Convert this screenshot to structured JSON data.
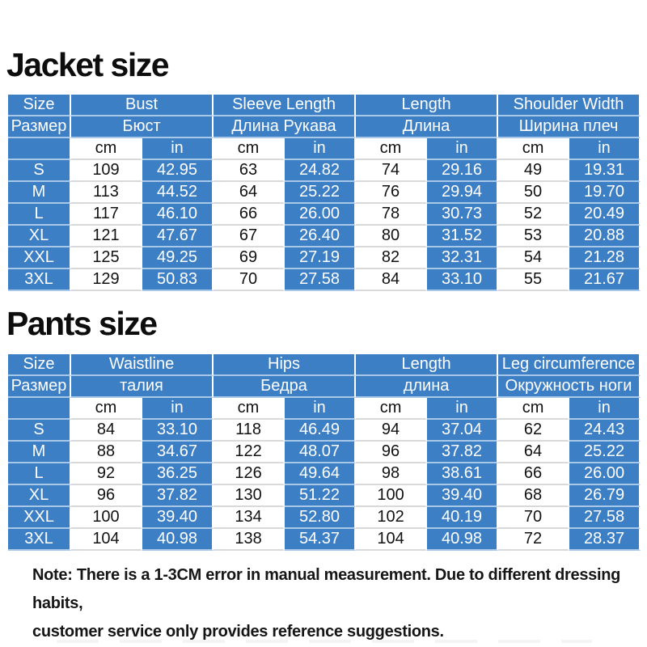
{
  "titles": {
    "jacket": "Jacket size",
    "pants": "Pants size"
  },
  "note": {
    "line1": "Note: There is a 1-3CM error in manual measurement. Due to different dressing habits,",
    "line2": "customer service only provides reference suggestions."
  },
  "colors": {
    "table_blue": "#3d7fc4",
    "header_text": "#ffffff",
    "value_text": "#121212",
    "title_text": "#0d0d0d"
  },
  "tables": [
    {
      "name": "jacket",
      "size_header": {
        "en": "Size",
        "ru": "Размер"
      },
      "groups": [
        {
          "en": "Bust",
          "ru": "Бюст"
        },
        {
          "en": "Sleeve Length",
          "ru": "Длина Рукава"
        },
        {
          "en": "Length",
          "ru": "Длина"
        },
        {
          "en": "Shoulder Width",
          "ru": "Ширина плеч"
        }
      ],
      "units": {
        "cm": "cm",
        "in": "in"
      },
      "rows": [
        {
          "size": "S",
          "values": [
            "109",
            "42.95",
            "63",
            "24.82",
            "74",
            "29.16",
            "49",
            "19.31"
          ]
        },
        {
          "size": "M",
          "values": [
            "113",
            "44.52",
            "64",
            "25.22",
            "76",
            "29.94",
            "50",
            "19.70"
          ]
        },
        {
          "size": "L",
          "values": [
            "117",
            "46.10",
            "66",
            "26.00",
            "78",
            "30.73",
            "52",
            "20.49"
          ]
        },
        {
          "size": "XL",
          "values": [
            "121",
            "47.67",
            "67",
            "26.40",
            "80",
            "31.52",
            "53",
            "20.88"
          ]
        },
        {
          "size": "XXL",
          "values": [
            "125",
            "49.25",
            "69",
            "27.19",
            "82",
            "32.31",
            "54",
            "21.28"
          ]
        },
        {
          "size": "3XL",
          "values": [
            "129",
            "50.83",
            "70",
            "27.58",
            "84",
            "33.10",
            "55",
            "21.67"
          ]
        }
      ]
    },
    {
      "name": "pants",
      "size_header": {
        "en": "Size",
        "ru": "Размер"
      },
      "groups": [
        {
          "en": "Waistline",
          "ru": "талия"
        },
        {
          "en": "Hips",
          "ru": "Бедра"
        },
        {
          "en": "Length",
          "ru": "длина"
        },
        {
          "en": "Leg circumference",
          "ru": "Окружность ноги"
        }
      ],
      "units": {
        "cm": "cm",
        "in": "in"
      },
      "rows": [
        {
          "size": "S",
          "values": [
            "84",
            "33.10",
            "118",
            "46.49",
            "94",
            "37.04",
            "62",
            "24.43"
          ]
        },
        {
          "size": "M",
          "values": [
            "88",
            "34.67",
            "122",
            "48.07",
            "96",
            "37.82",
            "64",
            "25.22"
          ]
        },
        {
          "size": "L",
          "values": [
            "92",
            "36.25",
            "126",
            "49.64",
            "98",
            "38.61",
            "66",
            "26.00"
          ]
        },
        {
          "size": "XL",
          "values": [
            "96",
            "37.82",
            "130",
            "51.22",
            "100",
            "39.40",
            "68",
            "26.79"
          ]
        },
        {
          "size": "XXL",
          "values": [
            "100",
            "39.40",
            "134",
            "52.80",
            "102",
            "40.19",
            "70",
            "27.58"
          ]
        },
        {
          "size": "3XL",
          "values": [
            "104",
            "40.98",
            "138",
            "54.37",
            "104",
            "40.98",
            "72",
            "28.37"
          ]
        }
      ]
    }
  ]
}
